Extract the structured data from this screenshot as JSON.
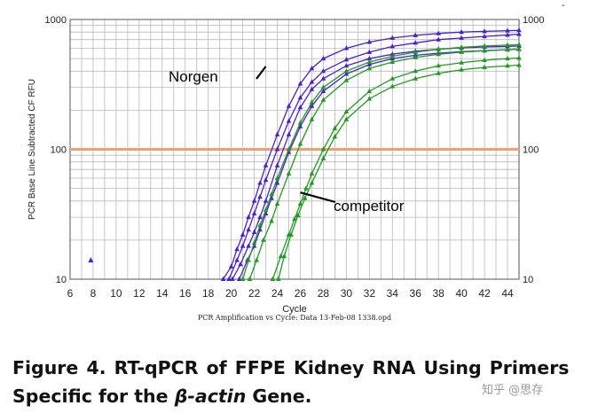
{
  "header_mark": "-",
  "chart_data": {
    "type": "line",
    "title": "",
    "xlabel": "Cycle",
    "ylabel": "PCR Base Line Subtracted CF RFU",
    "footer": "PCR Amplification vs Cycle: Data 13-Feb-08 1338.opd",
    "xlim": [
      6,
      45
    ],
    "ylim": [
      10,
      1000
    ],
    "yscale": "log",
    "x_ticks": [
      6,
      8,
      10,
      12,
      14,
      16,
      18,
      20,
      22,
      24,
      26,
      28,
      30,
      32,
      34,
      36,
      38,
      40,
      42,
      44
    ],
    "y_ticks": [
      10,
      100,
      1000
    ],
    "y_tick_labels": [
      "10",
      "100",
      "1000"
    ],
    "grid": true,
    "threshold": {
      "value": 100,
      "color": "#f0a070"
    },
    "colors": {
      "norgen": "#4a1fd0",
      "competitor": "#1f9a1f"
    },
    "annotations": [
      {
        "text": "Norgen",
        "x": 23,
        "y": 360
      },
      {
        "text": "competitor",
        "x": 26,
        "y": 48
      }
    ],
    "outlier": {
      "x": 7.8,
      "y": 14,
      "group": "norgen"
    },
    "series": [
      {
        "group": "norgen",
        "x": [
          19.3,
          20,
          20.5,
          21,
          21.5,
          22,
          22.5,
          23,
          24,
          25,
          26,
          27,
          28,
          30,
          32,
          34,
          36,
          38,
          40,
          42,
          44,
          45
        ],
        "values": [
          10,
          12.5,
          17,
          22,
          30,
          40,
          55,
          75,
          130,
          215,
          320,
          420,
          500,
          600,
          670,
          720,
          755,
          780,
          800,
          810,
          820,
          825
        ]
      },
      {
        "group": "norgen",
        "x": [
          19.8,
          20.5,
          21,
          21.5,
          22,
          22.5,
          23,
          24,
          25,
          26,
          27,
          28,
          30,
          32,
          34,
          36,
          38,
          40,
          42,
          44,
          45
        ],
        "values": [
          10,
          14,
          18,
          24,
          32,
          43,
          58,
          100,
          165,
          250,
          330,
          400,
          490,
          560,
          620,
          660,
          700,
          720,
          740,
          760,
          770
        ]
      },
      {
        "group": "norgen",
        "x": [
          20.1,
          20.8,
          21.5,
          22,
          22.5,
          23,
          24,
          25,
          26,
          27,
          28,
          30,
          32,
          34,
          36,
          38,
          40,
          42,
          44,
          45
        ],
        "values": [
          10,
          13,
          18,
          23,
          30,
          40,
          75,
          130,
          210,
          290,
          350,
          440,
          500,
          540,
          570,
          590,
          605,
          615,
          620,
          625
        ]
      },
      {
        "group": "norgen",
        "x": [
          20.7,
          21.4,
          22,
          22.5,
          23,
          23.5,
          24,
          25,
          26,
          27,
          28,
          30,
          32,
          34,
          36,
          38,
          40,
          42,
          44,
          45
        ],
        "values": [
          10,
          14,
          18,
          24,
          32,
          42,
          55,
          95,
          150,
          215,
          280,
          380,
          450,
          500,
          530,
          550,
          565,
          575,
          585,
          590
        ]
      },
      {
        "group": "competitor",
        "x": [
          21,
          21.5,
          22,
          22.5,
          23,
          23.5,
          24,
          25,
          26,
          27,
          28,
          30,
          32,
          34,
          36,
          38,
          40,
          42,
          44,
          45
        ],
        "values": [
          10,
          14,
          19,
          26,
          34,
          45,
          60,
          100,
          160,
          230,
          300,
          400,
          470,
          520,
          560,
          590,
          610,
          625,
          635,
          640
        ]
      },
      {
        "group": "competitor",
        "x": [
          21.6,
          22.2,
          22.8,
          23.5,
          24,
          25,
          26,
          27,
          28,
          30,
          32,
          34,
          36,
          38,
          40,
          42,
          44,
          45
        ],
        "values": [
          10,
          14,
          20,
          28,
          38,
          65,
          110,
          170,
          240,
          340,
          420,
          470,
          510,
          540,
          560,
          575,
          585,
          590
        ]
      },
      {
        "group": "competitor",
        "x": [
          23.6,
          24.3,
          25,
          25.5,
          26,
          26.5,
          27,
          28,
          29,
          30,
          32,
          34,
          36,
          38,
          40,
          42,
          44,
          45
        ],
        "values": [
          10,
          15,
          22,
          29,
          38,
          50,
          65,
          100,
          145,
          195,
          280,
          350,
          400,
          440,
          465,
          485,
          500,
          505
        ]
      },
      {
        "group": "competitor",
        "x": [
          24.1,
          24.6,
          25.2,
          25.8,
          26.4,
          27,
          28,
          29,
          30,
          32,
          34,
          36,
          38,
          40,
          42,
          44,
          45
        ],
        "values": [
          10,
          15,
          22,
          31,
          42,
          55,
          85,
          125,
          170,
          245,
          305,
          350,
          385,
          410,
          428,
          440,
          445
        ]
      }
    ]
  },
  "caption": {
    "line1": "Figure 4.  RT-qPCR of FFPE Kidney RNA Using Primers",
    "line2_pre": "Specific for the ",
    "line2_italic": "β-actin",
    "line2_post": " Gene."
  },
  "watermark": "知乎 @思存"
}
